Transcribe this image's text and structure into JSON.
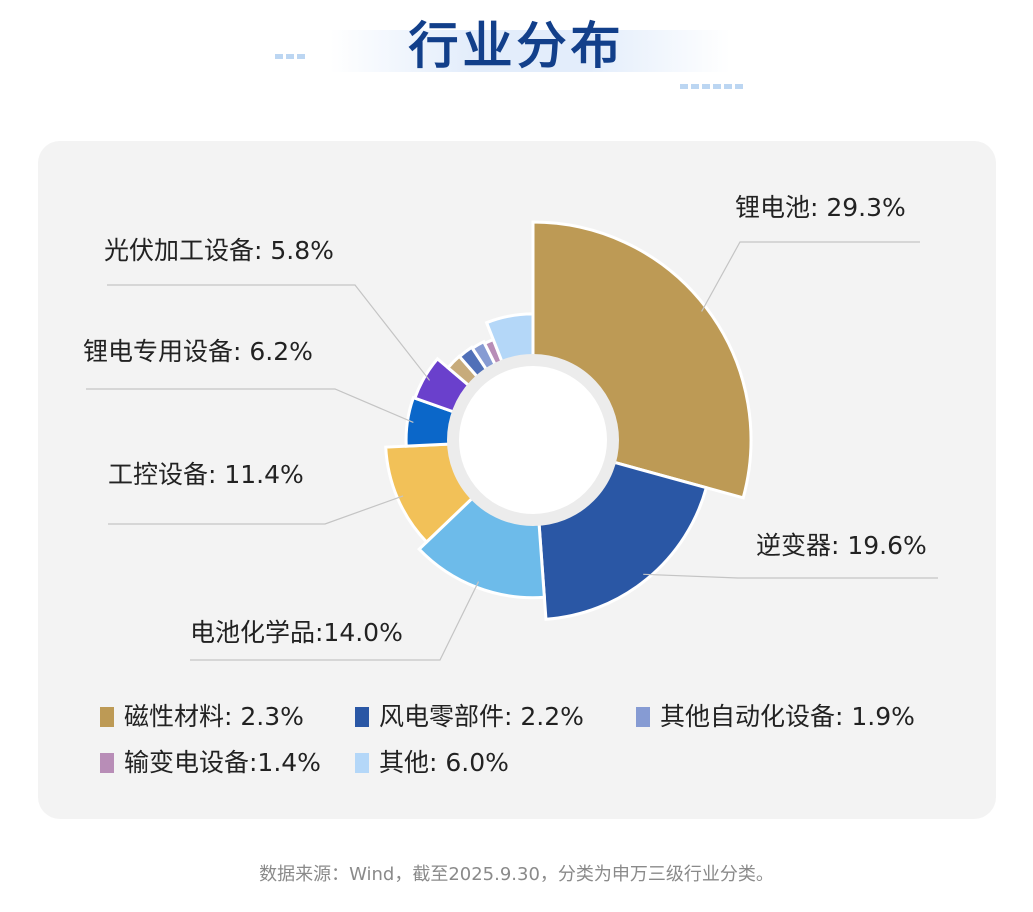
{
  "header": {
    "title": "行业分布"
  },
  "chart_data": {
    "type": "pie",
    "title": "行业分布",
    "slices": [
      {
        "label": "锂电池",
        "value": 29.3,
        "display": "锂电池: 29.3%",
        "color": "#bd9a55"
      },
      {
        "label": "逆变器",
        "value": 19.6,
        "display": "逆变器: 19.6%",
        "color": "#2a57a5"
      },
      {
        "label": "电池化学品",
        "value": 14.0,
        "display": "电池化学品:14.0%",
        "color": "#6dbbea"
      },
      {
        "label": "工控设备",
        "value": 11.4,
        "display": "工控设备: 11.4%",
        "color": "#f2c158"
      },
      {
        "label": "锂电专用设备",
        "value": 6.2,
        "display": "锂电专用设备: 6.2%",
        "color": "#0b67c9"
      },
      {
        "label": "光伏加工设备",
        "value": 5.8,
        "display": "光伏加工设备: 5.8%",
        "color": "#6a40cc"
      },
      {
        "label": "磁性材料",
        "value": 2.3,
        "display": "磁性材料: 2.3%",
        "color": "#c7ab7b"
      },
      {
        "label": "风电零部件",
        "value": 2.2,
        "display": "风电零部件: 2.2%",
        "color": "#5070b8"
      },
      {
        "label": "其他自动化设备",
        "value": 1.9,
        "display": "其他自动化设备: 1.9%",
        "color": "#869bd3"
      },
      {
        "label": "输变电设备",
        "value": 1.4,
        "display": "输变电设备:1.4%",
        "color": "#b88db7"
      },
      {
        "label": "其他",
        "value": 6.0,
        "display": "其他: 6.0%",
        "color": "#b4d7f8"
      }
    ],
    "legend": [
      {
        "label": "磁性材料: 2.3%",
        "color": "#bd9a55"
      },
      {
        "label": "风电零部件: 2.2%",
        "color": "#2a57a5"
      },
      {
        "label": "其他自动化设备: 1.9%",
        "color": "#869bd3"
      },
      {
        "label": "输变电设备:1.4%",
        "color": "#b88db7"
      },
      {
        "label": "其他: 6.0%",
        "color": "#b4d7f8"
      }
    ]
  },
  "footer": {
    "source": "数据来源：Wind，截至2025.9.30，分类为申万三级行业分类。"
  }
}
